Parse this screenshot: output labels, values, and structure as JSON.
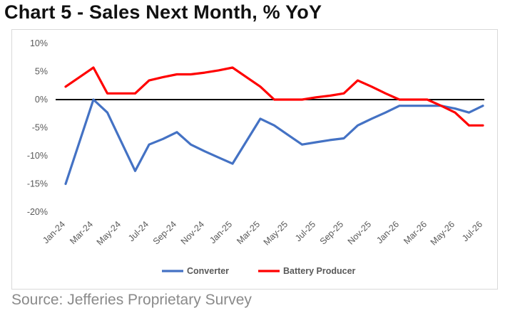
{
  "title": "Chart 5 - Sales Next Month, % YoY",
  "source": "Source: Jefferies Proprietary Survey",
  "chart_data": {
    "type": "line",
    "categories": [
      "Jan-24",
      "Feb-24",
      "Mar-24",
      "Apr-24",
      "May-24",
      "Jun-24",
      "Jul-24",
      "Aug-24",
      "Sep-24",
      "Oct-24",
      "Nov-24",
      "Dec-24",
      "Jan-25",
      "Feb-25",
      "Mar-25",
      "Apr-25",
      "May-25",
      "Jun-25",
      "Jul-25",
      "Aug-25",
      "Sep-25",
      "Oct-25",
      "Nov-25",
      "Dec-25",
      "Jan-26",
      "Feb-26",
      "Mar-26",
      "Apr-26",
      "May-26",
      "Jun-26",
      "Jul-26"
    ],
    "x_tick_labels": [
      "Jan-24",
      "Mar-24",
      "May-24",
      "Jul-24",
      "Sep-24",
      "Nov-24",
      "Jan-25",
      "Mar-25",
      "May-25",
      "Jul-25",
      "Sep-25",
      "Nov-25",
      "Jan-26",
      "Mar-26",
      "May-26",
      "Jul-26"
    ],
    "y_ticks": [
      "10%",
      "5%",
      "0%",
      "-5%",
      "-10%",
      "-15%",
      "-20%"
    ],
    "ylim": [
      -20,
      10
    ],
    "y_unit": "%",
    "grid": false,
    "legend_position": "bottom",
    "series": [
      {
        "name": "Converter",
        "color": "#4472C4",
        "values": [
          -15,
          -7.5,
          0,
          -2.3,
          -7.5,
          -12.7,
          -8,
          -7,
          -5.8,
          -8,
          -9.2,
          -10.3,
          -11.4,
          -7.4,
          -3.4,
          -4.6,
          -6.3,
          -8,
          -7.6,
          -7.2,
          -6.9,
          -4.6,
          -3.4,
          -2.3,
          -1.1,
          -1.1,
          -1.1,
          -1.1,
          -1.6,
          -2.3,
          -1.1
        ]
      },
      {
        "name": "Battery Producer",
        "color": "#FF0000",
        "values": [
          2.3,
          4,
          5.7,
          1.1,
          1.1,
          1.1,
          3.4,
          4,
          4.5,
          4.5,
          4.8,
          5.2,
          5.7,
          4,
          2.3,
          0,
          0,
          0,
          0.4,
          0.7,
          1.1,
          3.4,
          2.3,
          1.1,
          0,
          0,
          0,
          -1.1,
          -2.3,
          -4.6,
          -4.6
        ]
      }
    ]
  }
}
